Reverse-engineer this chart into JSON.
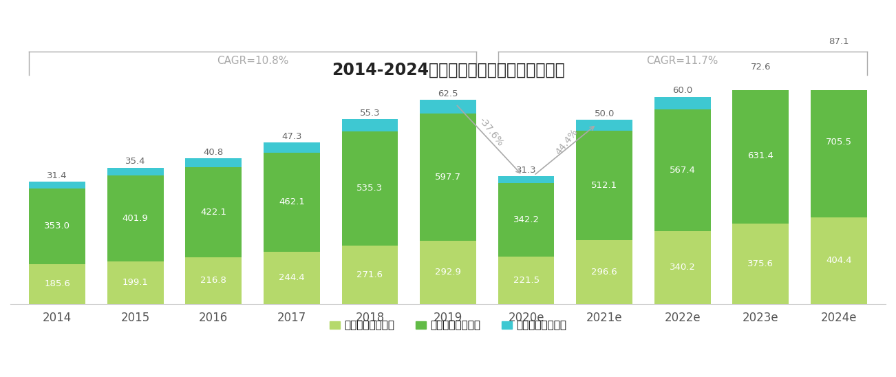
{
  "title": "2014-2024年中国成人英语市场规模及预测",
  "years": [
    "2014",
    "2015",
    "2016",
    "2017",
    "2018",
    "2019",
    "2020e",
    "2021e",
    "2022e",
    "2023e",
    "2024e"
  ],
  "yingshi": [
    185.6,
    199.1,
    216.8,
    244.4,
    271.6,
    292.9,
    221.5,
    296.6,
    340.2,
    375.6,
    404.4
  ],
  "shiyong": [
    353.0,
    401.9,
    422.1,
    462.1,
    535.3,
    597.7,
    342.2,
    512.1,
    567.4,
    631.4,
    705.5
  ],
  "jigou": [
    31.4,
    35.4,
    40.8,
    47.3,
    55.3,
    62.5,
    31.3,
    50.0,
    60.0,
    72.6,
    87.1
  ],
  "color_yingshi": "#b5d96b",
  "color_shiyong": "#62bb46",
  "color_jigou": "#3ec8d2",
  "background": "#ffffff",
  "cagr1_text": "CAGR=10.8%",
  "cagr2_text": "CAGR=11.7%",
  "legend": [
    "应试英语（亿元）",
    "实用英语（亿元）",
    "机构业务（亿元）"
  ],
  "arrow_drop": "-37.6%",
  "arrow_rise": "44.4%",
  "title_fontsize": 17,
  "label_fontsize": 9.5,
  "tick_fontsize": 12,
  "legend_fontsize": 11,
  "ylim_max": 1000
}
